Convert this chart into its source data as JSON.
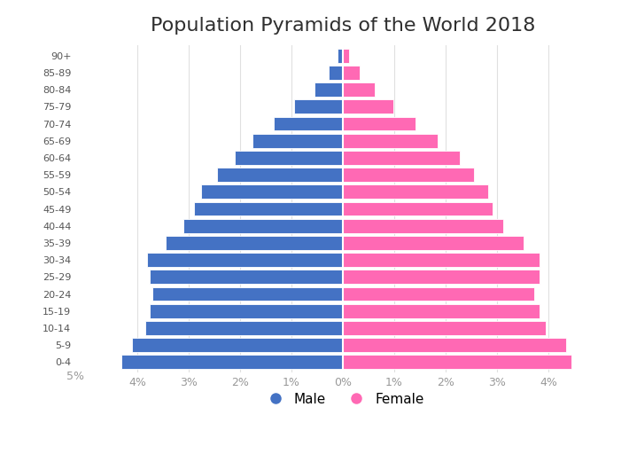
{
  "title": "Population Pyramids of the World 2018",
  "age_groups": [
    "0-4",
    "5-9",
    "10-14",
    "15-19",
    "20-24",
    "25-29",
    "30-34",
    "35-39",
    "40-44",
    "45-49",
    "50-54",
    "55-59",
    "60-64",
    "65-69",
    "70-74",
    "75-79",
    "80-84",
    "85-89",
    "90+"
  ],
  "male": [
    4.3,
    4.1,
    3.85,
    3.75,
    3.7,
    3.75,
    3.8,
    3.45,
    3.1,
    2.9,
    2.75,
    2.45,
    2.1,
    1.75,
    1.35,
    0.95,
    0.55,
    0.28,
    0.1
  ],
  "female": [
    4.45,
    4.35,
    3.95,
    3.82,
    3.72,
    3.82,
    3.82,
    3.52,
    3.12,
    2.92,
    2.82,
    2.55,
    2.28,
    1.85,
    1.42,
    0.98,
    0.62,
    0.32,
    0.13
  ],
  "male_color": "#4472C4",
  "female_color": "#FF69B4",
  "background_color": "#FFFFFF",
  "title_color": "#2F2F2F",
  "tick_label_color": "#999999",
  "ytick_label_color": "#555555",
  "xlim": 5.2,
  "bar_height": 0.82,
  "title_fontsize": 16,
  "axis_fontsize": 9,
  "ytick_fontsize": 8
}
